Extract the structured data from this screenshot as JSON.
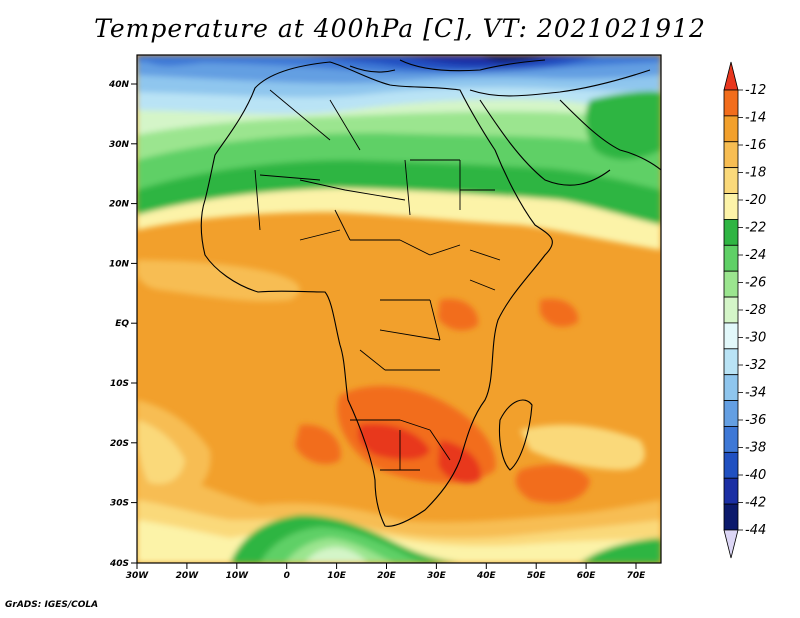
{
  "title": "Temperature at 400hPa [C], VT: 2021021912",
  "credit": "GrADS: IGES/COLA",
  "axes": {
    "lat_labels": [
      "40N",
      "30N",
      "20N",
      "10N",
      "EQ",
      "10S",
      "20S",
      "30S",
      "40S"
    ],
    "lon_labels": [
      "30W",
      "20W",
      "10W",
      "0",
      "10E",
      "20E",
      "30E",
      "40E",
      "50E",
      "60E",
      "70E"
    ]
  },
  "colorbar": {
    "labels": [
      "-12",
      "-14",
      "-16",
      "-18",
      "-20",
      "-22",
      "-24",
      "-26",
      "-28",
      "-30",
      "-32",
      "-34",
      "-36",
      "-38",
      "-40",
      "-42",
      "-44"
    ],
    "colors": [
      "#e8371e",
      "#f26d1c",
      "#f2a02c",
      "#f7bd52",
      "#fad97a",
      "#fcf3a8",
      "#2fb543",
      "#5fd066",
      "#9be58f",
      "#d4f5c8",
      "#e2f8fa",
      "#b9e3f5",
      "#8fc6ee",
      "#649fe2",
      "#3e78d6",
      "#2050c1",
      "#1b2fa4",
      "#0c1a6c"
    ],
    "triangle_low": "#dcd6f5"
  }
}
